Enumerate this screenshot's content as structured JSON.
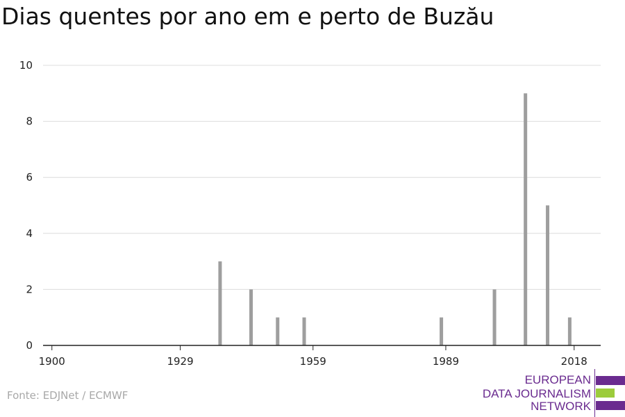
{
  "chart_data": {
    "type": "bar",
    "title": "Dias quentes por ano em e perto de Buzău",
    "xlabel": "",
    "ylabel": "",
    "x_ticks": [
      1900,
      1929,
      1959,
      1989,
      2018
    ],
    "y_ticks": [
      0,
      2,
      4,
      6,
      8,
      10
    ],
    "xlim": [
      1898,
      2024
    ],
    "ylim": [
      0,
      10
    ],
    "grid": true,
    "bar_color": "#9e9e9e",
    "x": [
      1938,
      1945,
      1951,
      1957,
      1988,
      2000,
      2007,
      2012,
      2017
    ],
    "values": [
      3,
      2,
      1,
      1,
      1,
      2,
      9,
      5,
      1
    ]
  },
  "source": "Fonte: EDJNet / ECMWF",
  "logo": {
    "lines": [
      "EUROPEAN",
      "DATA JOURNALISM",
      "NETWORK"
    ],
    "colors": {
      "purple": "#6a2b8f",
      "green": "#9ccc3c"
    }
  }
}
